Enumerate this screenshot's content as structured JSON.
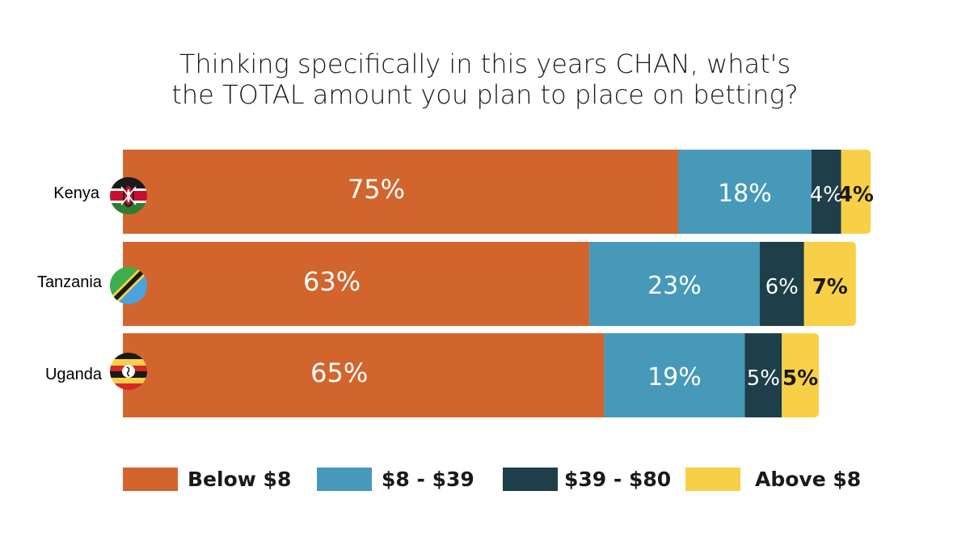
{
  "title_lines": [
    "Thinking specifically in this years CHAN, what's",
    "the TOTAL amount you plan to place on betting?"
  ],
  "colors": {
    "below_8": "#D2652E",
    "8_39": "#4699B9",
    "39_80": "#1E3E4A",
    "above_8": "#F8D048"
  },
  "chart_data": {
    "type": "bar",
    "orientation": "horizontal",
    "stacked": true,
    "categories": [
      "Kenya",
      "Tanzania",
      "Uganda"
    ],
    "series": [
      {
        "name": "Below $8",
        "values": [
          75,
          63,
          65
        ],
        "labels": [
          "75%",
          "63%",
          "65%"
        ],
        "color": "#D2652E",
        "label_color": "#ffffff"
      },
      {
        "name": "$8 - $39",
        "values": [
          18,
          23,
          19
        ],
        "labels": [
          "18%",
          "23%",
          "19%"
        ],
        "color": "#4699B9",
        "label_color": "#ffffff"
      },
      {
        "name": "$39 - $80",
        "values": [
          4,
          6,
          5
        ],
        "labels": [
          "4%",
          "6%",
          "5%"
        ],
        "color": "#1E3E4A",
        "label_color": "#ffffff"
      },
      {
        "name": "Above $8",
        "values": [
          4,
          7,
          5
        ],
        "labels": [
          "4%",
          "7%",
          "5%"
        ],
        "color": "#F8D048",
        "label_color": "#1a1a1a"
      }
    ],
    "legend_position": "bottom",
    "grid": false
  },
  "flags": [
    "kenya-flag-icon",
    "tanzania-flag-icon",
    "uganda-flag-icon"
  ]
}
